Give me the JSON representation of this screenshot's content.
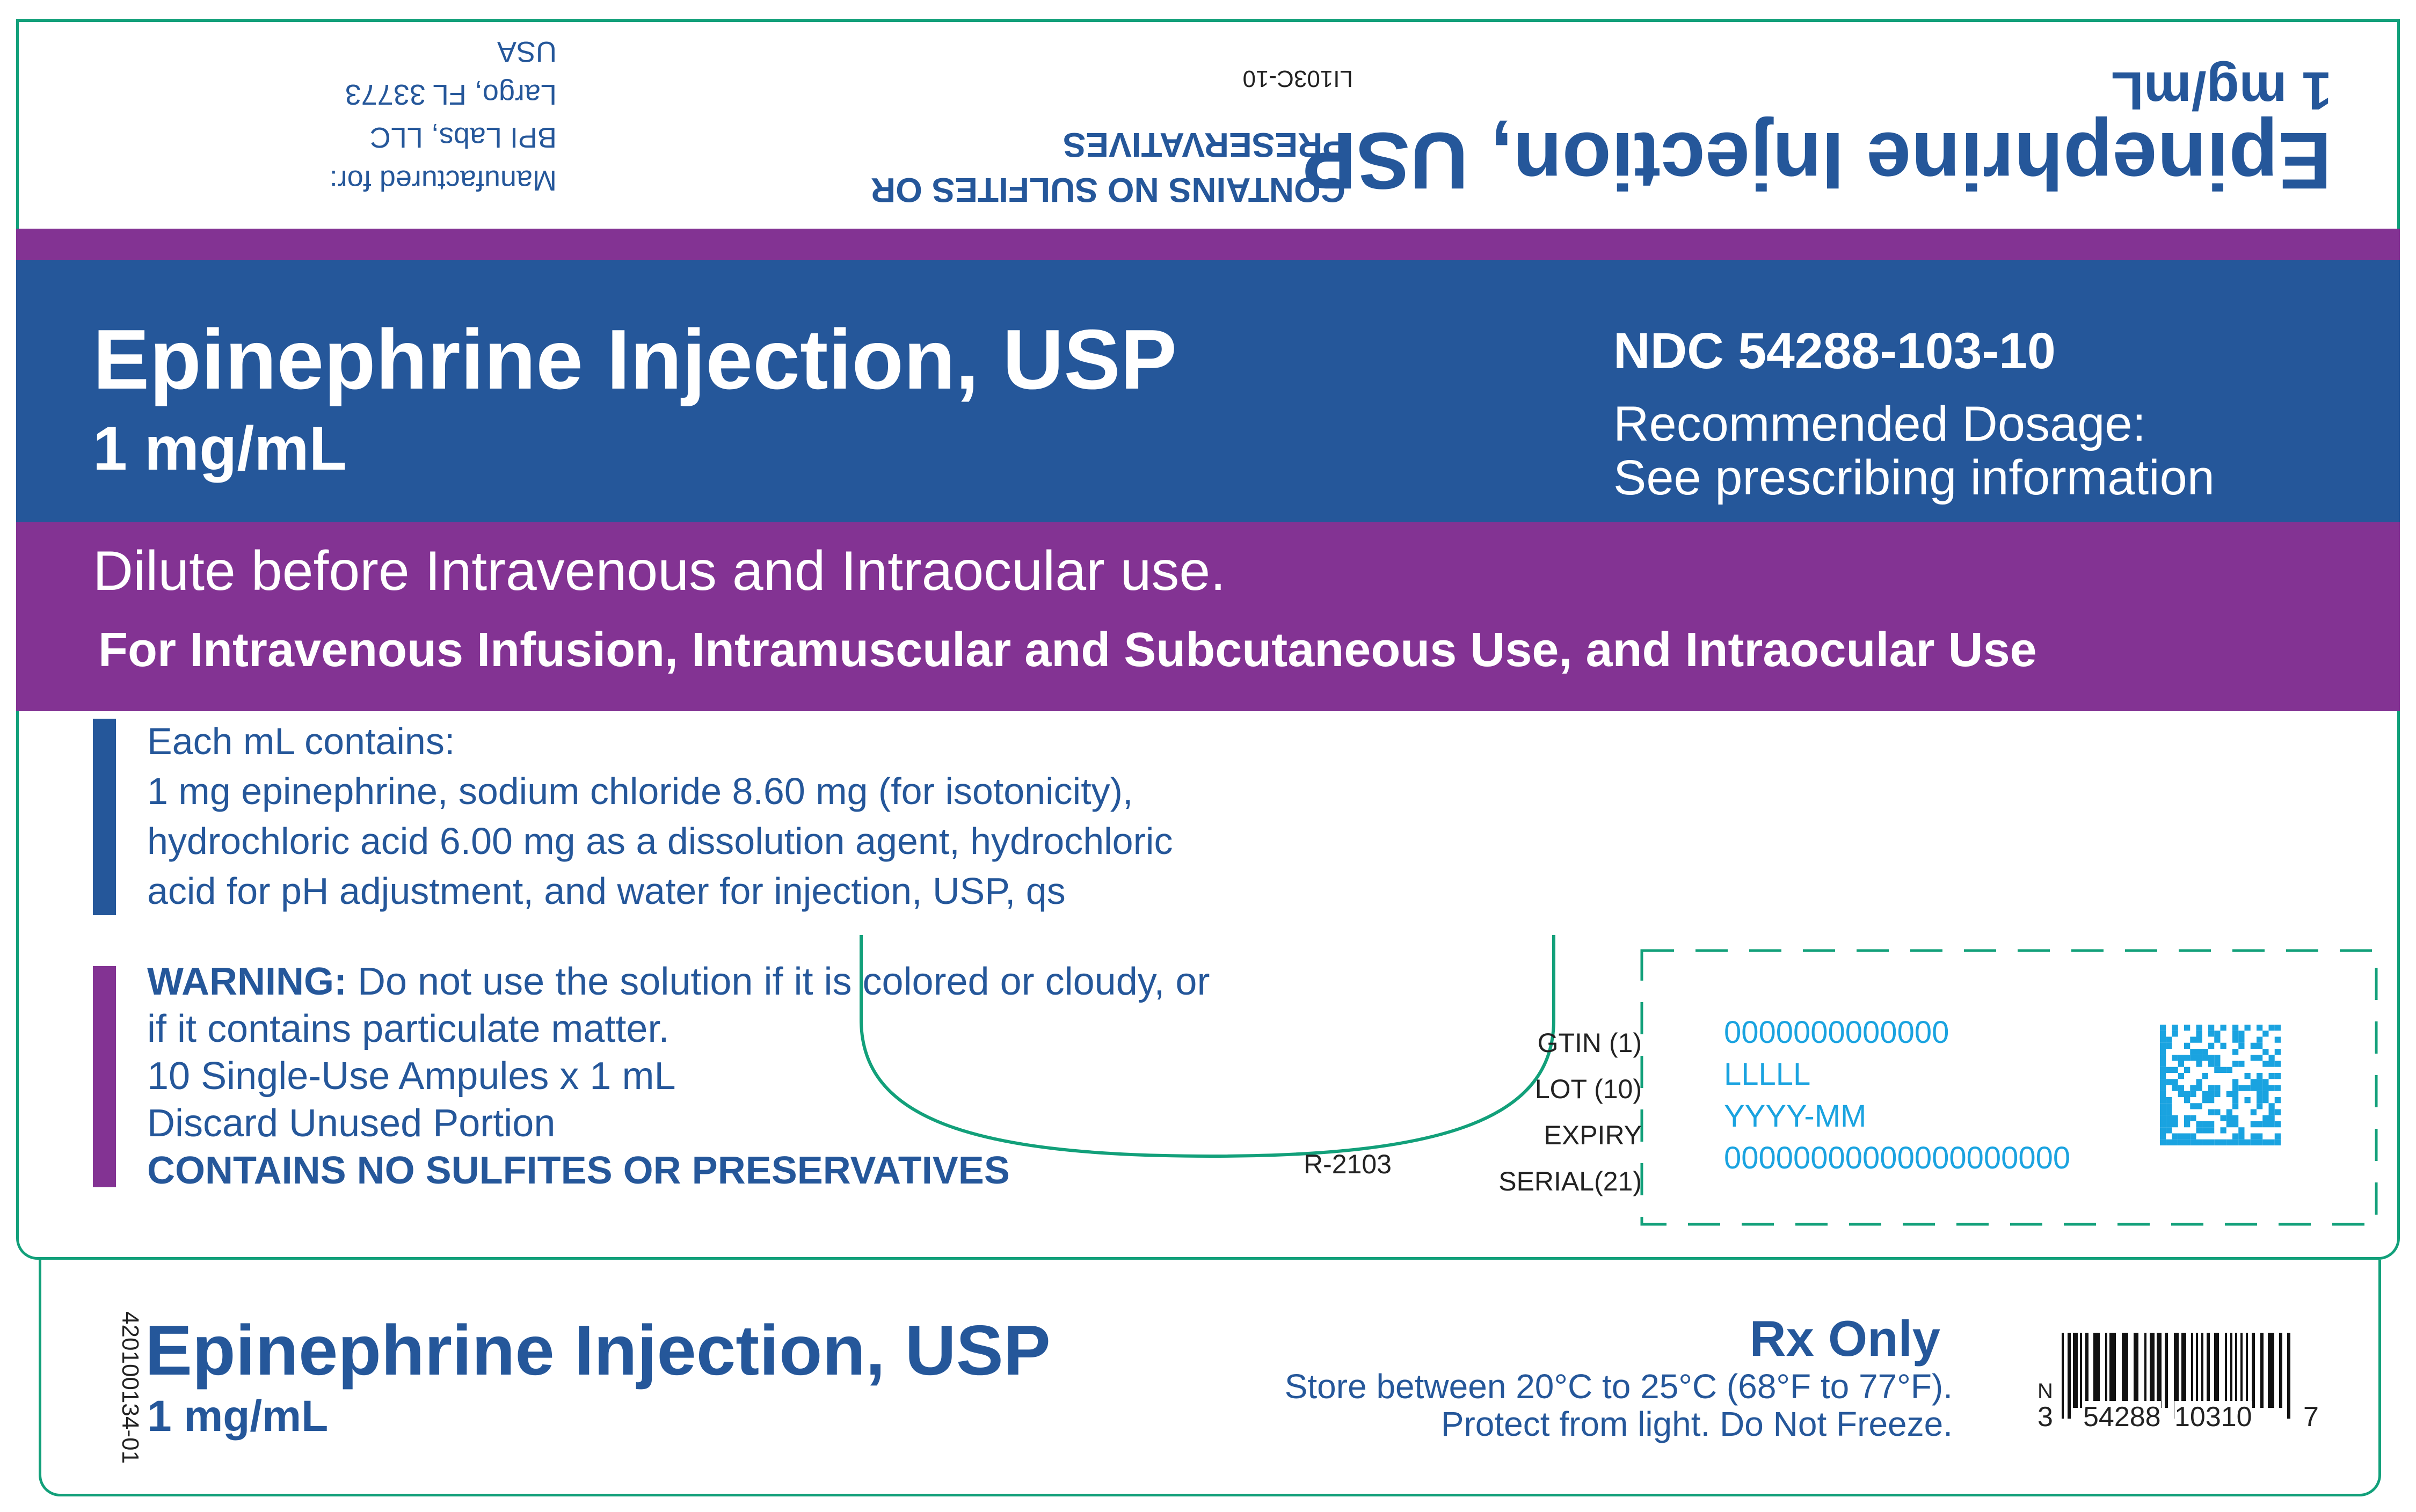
{
  "colors": {
    "blue": "#25579a",
    "purple": "#833393",
    "green": "#12a07a",
    "cyan": "#1aa3e0"
  },
  "flap": {
    "title": "Epinephrine Injection, USP",
    "strength": "1 mg/mL",
    "no_sulfites": [
      "CONTAINS NO SULFITES OR",
      "PRESERVATIVES"
    ],
    "code": "LI103C-10",
    "manufacturer": [
      "Manufactured for:",
      "BPI Labs, LLC",
      "Largo, FL 33773",
      "USA"
    ]
  },
  "header": {
    "title": "Epinephrine Injection, USP",
    "strength": "1 mg/mL",
    "ndc": "NDC 54288-103-10",
    "dosage": [
      "Recommended Dosage:",
      "See prescribing information"
    ]
  },
  "usage": {
    "dilute": "Dilute before Intravenous and Intraocular use.",
    "routes": "For Intravenous Infusion, Intramuscular and Subcutaneous Use, and Intraocular Use"
  },
  "composition": [
    "Each mL contains:",
    "1 mg epinephrine, sodium chloride 8.60 mg (for isotonicity),",
    "hydrochloric acid 6.00 mg as a dissolution agent, hydrochloric",
    "acid for pH adjustment, and water for injection, USP, qs"
  ],
  "warning": {
    "label": "WARNING:",
    "line1": " Do not use the solution if it is colored or cloudy, or",
    "line2": "if it contains particulate matter.",
    "ampules": "10 Single-Use Ampules x 1 mL",
    "discard": "Discard Unused Portion",
    "no_sulfites": "CONTAINS NO SULFITES OR PRESERVATIVES"
  },
  "ref_code": "R-2103",
  "serialization": {
    "labels": [
      "GTIN (1)",
      "LOT (10)",
      "EXPIRY",
      "SERIAL(21)"
    ],
    "values": [
      "0000000000000",
      "LLLLL",
      "YYYY-MM",
      "00000000000000000000"
    ]
  },
  "bottom": {
    "item_code": "420100134-01",
    "title": "Epinephrine Injection, USP",
    "strength": "1 mg/mL",
    "rx": "Rx Only",
    "storage": "Store between 20°C to 25°C (68°F to 77°F).",
    "protect": "Protect from light. Do Not Freeze.",
    "barcode_digits": {
      "n": "N",
      "first": "3",
      "group1": "54288",
      "group2": "10310",
      "check": "7"
    }
  }
}
